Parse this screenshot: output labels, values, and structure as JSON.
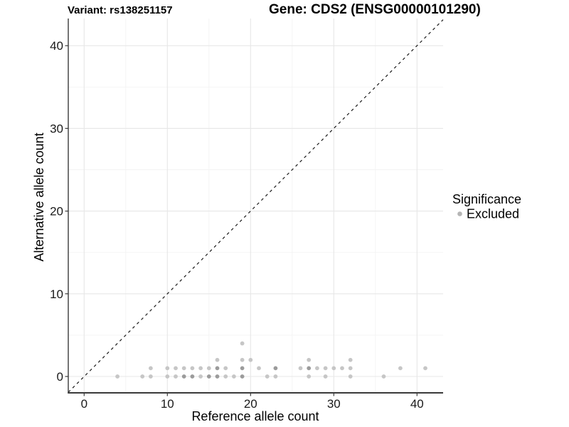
{
  "chart_data": {
    "type": "scatter",
    "title_left": "Variant: rs138251157",
    "title_right": "Gene: CDS2 (ENSG00000101290)",
    "xlabel": "Reference allele count",
    "ylabel": "Alternative allele count",
    "xlim": [
      -2,
      43
    ],
    "ylim": [
      -2,
      43
    ],
    "x_ticks": [
      0,
      10,
      20,
      30,
      40
    ],
    "x_minor_ticks": [
      5,
      15,
      25,
      35
    ],
    "y_ticks": [
      0,
      10,
      20,
      30,
      40
    ],
    "y_minor_ticks": [
      5,
      15,
      25,
      35
    ],
    "grid": true,
    "legend_position": "right",
    "legend_title": "Significance",
    "identity_line": {
      "equation": "y = x",
      "style": "dashed"
    },
    "series": [
      {
        "name": "Excluded",
        "points": [
          [
            4,
            0
          ],
          [
            7,
            0
          ],
          [
            8,
            0
          ],
          [
            10,
            0
          ],
          [
            11,
            0
          ],
          [
            12,
            0
          ],
          [
            13,
            0
          ],
          [
            14,
            0
          ],
          [
            15,
            0
          ],
          [
            16,
            0
          ],
          [
            17,
            0
          ],
          [
            18,
            0
          ],
          [
            19,
            0
          ],
          [
            22,
            0
          ],
          [
            23,
            0
          ],
          [
            27,
            0
          ],
          [
            29,
            0
          ],
          [
            32,
            0
          ],
          [
            36,
            0
          ],
          [
            8,
            1
          ],
          [
            10,
            1
          ],
          [
            11,
            1
          ],
          [
            12,
            1
          ],
          [
            13,
            1
          ],
          [
            14,
            1
          ],
          [
            15,
            1
          ],
          [
            16,
            1
          ],
          [
            17,
            1
          ],
          [
            19,
            1
          ],
          [
            21,
            1
          ],
          [
            23,
            1
          ],
          [
            26,
            1
          ],
          [
            27,
            1
          ],
          [
            28,
            1
          ],
          [
            29,
            1
          ],
          [
            30,
            1
          ],
          [
            31,
            1
          ],
          [
            32,
            1
          ],
          [
            38,
            1
          ],
          [
            41,
            1
          ],
          [
            16,
            2
          ],
          [
            19,
            2
          ],
          [
            20,
            2
          ],
          [
            27,
            2
          ],
          [
            32,
            2
          ],
          [
            19,
            4
          ]
        ],
        "overlapped_points": [
          [
            12,
            0
          ],
          [
            13,
            0
          ],
          [
            15,
            0
          ],
          [
            16,
            0
          ],
          [
            19,
            0
          ],
          [
            16,
            1
          ],
          [
            19,
            1
          ],
          [
            23,
            1
          ],
          [
            27,
            1
          ]
        ]
      }
    ]
  },
  "style": {
    "background": "#ffffff",
    "point_color": "#c6c6c6",
    "point_overlap_color": "#9b9b9b",
    "legend_point_color": "#b5b5b5",
    "grid_major_color": "#e7e7e7",
    "grid_minor_color": "#f3f3f3",
    "axis_line_color": "#3a3a3a",
    "tick_label_color": "#1a1a1a",
    "identity_line_color": "#1a1a1a",
    "title_color": "#000000"
  }
}
